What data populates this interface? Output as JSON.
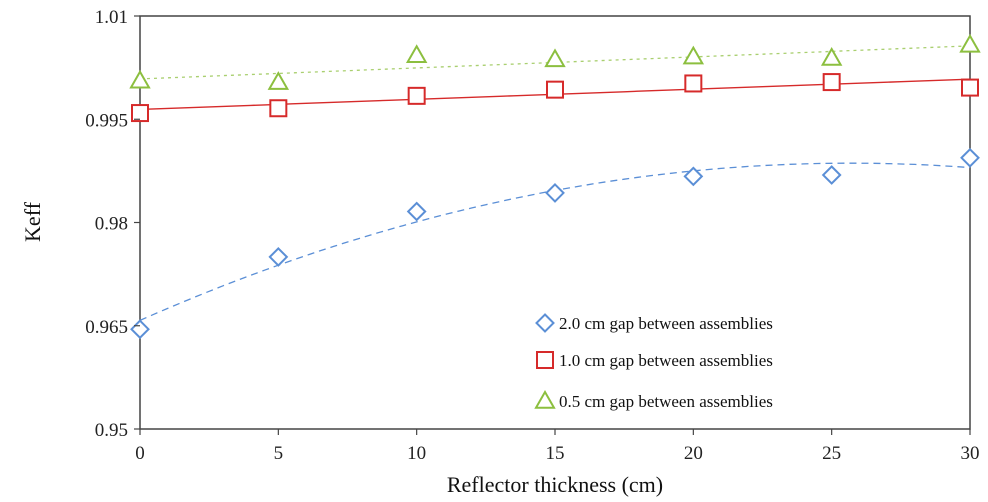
{
  "chart_data": {
    "type": "scatter",
    "xlabel": "Reflector thickness (cm)",
    "ylabel": "Keff",
    "xlim": [
      0,
      30
    ],
    "ylim": [
      0.95,
      1.01
    ],
    "xticks": [
      0,
      5,
      10,
      15,
      20,
      25,
      30
    ],
    "yticks": [
      0.95,
      0.965,
      0.98,
      0.995,
      1.01
    ],
    "xtick_labels": [
      "0",
      "5",
      "10",
      "15",
      "20",
      "25",
      "30"
    ],
    "ytick_labels": [
      "0.95",
      "0.965",
      "0.98",
      "0.995",
      "1.01"
    ],
    "grid": false,
    "legend_position": "bottom-right",
    "series": [
      {
        "name": "2.0 cm gap between assemblies",
        "marker": "diamond",
        "color": "#5b8fd6",
        "trendline": "dashed",
        "x": [
          0,
          5,
          10,
          15,
          20,
          25,
          30
        ],
        "y": [
          0.9645,
          0.975,
          0.9816,
          0.9843,
          0.9867,
          0.9869,
          0.9894
        ]
      },
      {
        "name": "1.0 cm gap between assemblies",
        "marker": "square",
        "color": "#d62a2a",
        "trendline": "solid",
        "x": [
          0,
          5,
          10,
          15,
          20,
          25,
          30
        ],
        "y": [
          0.9959,
          0.9966,
          0.9984,
          0.9993,
          1.0002,
          1.0004,
          0.9996
        ]
      },
      {
        "name": "0.5 cm gap between assemblies",
        "marker": "triangle",
        "color": "#8cbf3f",
        "trendline": "dotted",
        "x": [
          0,
          5,
          10,
          15,
          20,
          25,
          30
        ],
        "y": [
          1.0006,
          1.0004,
          1.0043,
          1.0037,
          1.0041,
          1.0039,
          1.0058
        ]
      }
    ]
  }
}
